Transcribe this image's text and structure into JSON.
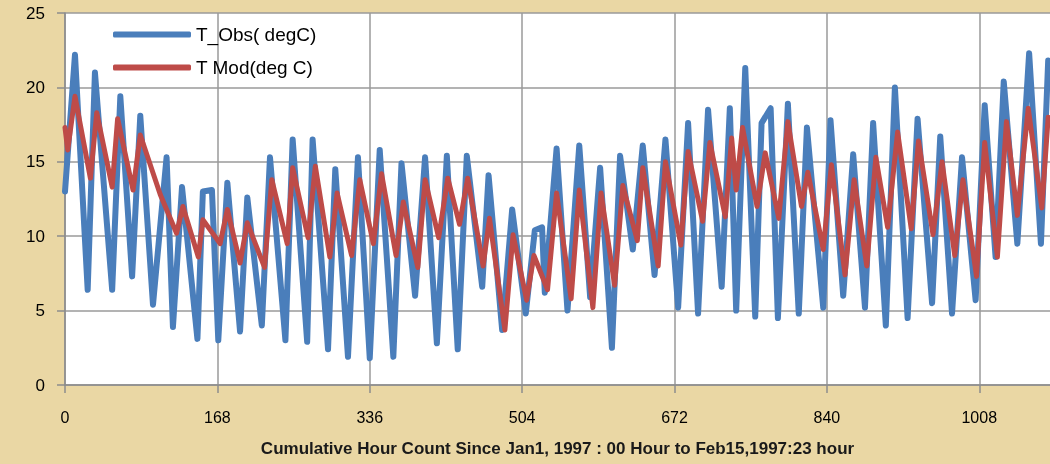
{
  "chart_data": {
    "type": "line",
    "xlabel": "Cumulative Hour Count Since Jan1, 1997 : 00 Hour to Feb15,1997:23 hour",
    "xlim": [
      0,
      1086
    ],
    "xticks": [
      0,
      168,
      336,
      504,
      672,
      840,
      1008
    ],
    "ylim": [
      0,
      25
    ],
    "yticks": [
      0,
      5,
      10,
      15,
      20,
      25
    ],
    "grid": true,
    "legend": "top left",
    "marker": "none",
    "line_style": "solid",
    "series": [
      {
        "name": "T_Obs( degC)",
        "color": "#4a7ebb",
        "x": [
          0,
          11,
          25,
          33,
          52,
          61,
          74,
          83,
          97,
          112,
          119,
          129,
          146,
          152,
          162,
          169,
          179,
          193,
          201,
          217,
          226,
          243,
          251,
          267,
          273,
          290,
          298,
          312,
          323,
          336,
          347,
          362,
          371,
          386,
          397,
          410,
          421,
          433,
          443,
          460,
          467,
          482,
          493,
          508,
          518,
          526,
          529,
          542,
          554,
          567,
          579,
          590,
          603,
          612,
          626,
          637,
          650,
          662,
          676,
          687,
          698,
          709,
          724,
          733,
          740,
          750,
          761,
          768,
          778,
          786,
          797,
          809,
          818,
          836,
          844,
          858,
          869,
          882,
          891,
          905,
          915,
          929,
          940,
          956,
          965,
          978,
          989,
          1004,
          1014,
          1026,
          1035,
          1050,
          1063,
          1076,
          1084
        ],
        "values": [
          13.0,
          22.2,
          6.4,
          21.0,
          6.4,
          19.4,
          7.3,
          18.1,
          5.4,
          15.3,
          3.9,
          13.3,
          3.1,
          13.0,
          13.1,
          3.0,
          13.6,
          3.6,
          12.6,
          4.0,
          15.3,
          3.0,
          16.5,
          2.9,
          16.5,
          2.4,
          14.5,
          1.9,
          15.3,
          1.8,
          15.8,
          1.9,
          14.9,
          6.0,
          15.3,
          2.8,
          15.4,
          2.4,
          15.4,
          6.6,
          14.1,
          3.7,
          11.8,
          4.8,
          10.4,
          10.6,
          6.2,
          15.9,
          5.0,
          16.1,
          5.9,
          14.6,
          2.5,
          15.4,
          9.1,
          16.1,
          7.4,
          16.5,
          5.2,
          17.6,
          4.8,
          18.5,
          6.6,
          18.6,
          5.0,
          21.3,
          4.6,
          17.6,
          18.6,
          4.5,
          18.9,
          4.8,
          17.3,
          5.2,
          17.8,
          6.0,
          15.5,
          5.2,
          17.6,
          4.0,
          20.0,
          4.5,
          17.9,
          5.5,
          16.7,
          4.8,
          15.3,
          5.7,
          18.8,
          8.6,
          20.4,
          9.5,
          22.3,
          9.5,
          21.8
        ]
      },
      {
        "name": "T Mod(deg C)",
        "color": "#be4b48",
        "x": [
          0,
          3,
          11,
          28,
          35,
          52,
          58,
          75,
          83,
          105,
          123,
          130,
          147,
          152,
          171,
          179,
          193,
          201,
          220,
          228,
          245,
          251,
          268,
          276,
          292,
          300,
          316,
          325,
          340,
          349,
          365,
          373,
          389,
          397,
          412,
          422,
          435,
          444,
          461,
          468,
          485,
          494,
          509,
          517,
          532,
          542,
          558,
          567,
          582,
          591,
          606,
          615,
          631,
          637,
          654,
          662,
          679,
          687,
          703,
          711,
          728,
          735,
          740,
          747,
          763,
          772,
          787,
          797,
          812,
          819,
          836,
          845,
          860,
          870,
          884,
          894,
          907,
          918,
          933,
          941,
          957,
          967,
          981,
          990,
          1005,
          1014,
          1028,
          1038,
          1050,
          1062,
          1077,
          1084
        ],
        "values": [
          17.3,
          15.8,
          19.4,
          13.9,
          18.3,
          13.3,
          17.9,
          13.1,
          16.8,
          12.8,
          10.2,
          12.0,
          8.6,
          11.1,
          9.5,
          11.8,
          8.2,
          10.9,
          7.9,
          13.8,
          9.5,
          14.6,
          9.9,
          14.7,
          8.6,
          12.9,
          8.7,
          13.8,
          9.5,
          14.2,
          8.7,
          12.3,
          7.9,
          13.8,
          9.9,
          13.9,
          10.8,
          13.9,
          8.0,
          11.2,
          3.7,
          10.1,
          5.7,
          8.7,
          6.4,
          12.9,
          5.8,
          13.1,
          5.2,
          12.9,
          6.7,
          13.4,
          9.7,
          14.6,
          8.0,
          15.0,
          9.4,
          15.7,
          11.0,
          16.3,
          11.3,
          16.6,
          13.1,
          17.3,
          12.0,
          15.6,
          11.2,
          17.7,
          12.0,
          14.3,
          9.1,
          14.8,
          7.4,
          13.8,
          8.0,
          15.3,
          10.6,
          17.0,
          10.5,
          16.4,
          10.1,
          15.0,
          8.7,
          13.8,
          7.3,
          16.3,
          8.6,
          17.7,
          11.4,
          18.6,
          11.9,
          18.0
        ]
      }
    ]
  }
}
